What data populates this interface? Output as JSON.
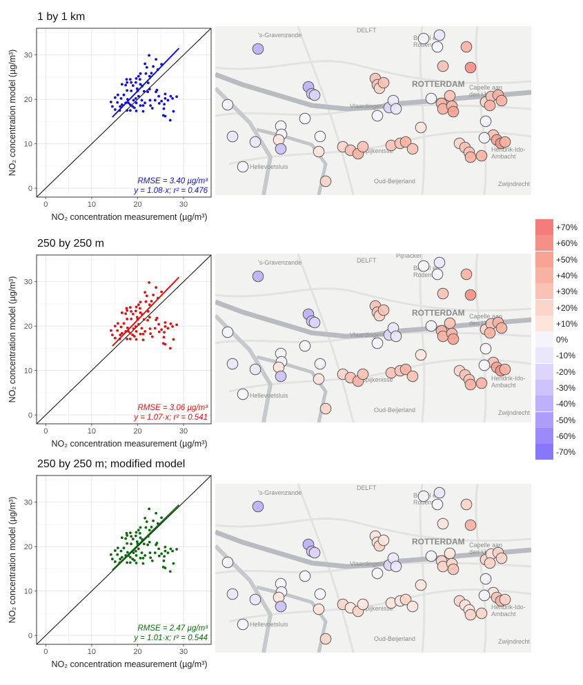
{
  "chart_data": [
    {
      "type": "scatter",
      "title": "1 by 1 km",
      "xlabel": "NO₂ concentration measurement (µg/m³)",
      "ylabel": "NO₂ concentration model (µg/m³)",
      "xlim": [
        -2,
        36
      ],
      "ylim": [
        -2,
        36
      ],
      "xticks": [
        0,
        10,
        20,
        30
      ],
      "yticks": [
        0,
        10,
        20,
        30
      ],
      "grid": true,
      "color": "#1010d8",
      "fit": {
        "x": [
          14.5,
          29
        ],
        "y": [
          16.0,
          31.5
        ]
      },
      "annotation_rmse": "RMSE = 3.40 µg/m³",
      "annotation_fit": "y = 1.08·x; r² = 0.476",
      "points": {
        "x": [
          22.5,
          24.0,
          21.6,
          25.2,
          23.4,
          22.0,
          24.4,
          23.0,
          20.6,
          21.8,
          20.2,
          22.6,
          19.7,
          20.5,
          17.6,
          18.4,
          17.7,
          19.6,
          18.6,
          22.3,
          20.6,
          16.6,
          17.4,
          19.0,
          21.0,
          19.9,
          22.6,
          24.2,
          17.7,
          18.6,
          20.0,
          21.4,
          22.2,
          24.0,
          26.0,
          15.7,
          17.0,
          20.2,
          24.6,
          27.2,
          28.5,
          15.1,
          16.4,
          19.6,
          26.0,
          27.6,
          17.8,
          19.1,
          20.9,
          22.7,
          23.8,
          26.6,
          25.2,
          14.2,
          15.6,
          17.4,
          18.0,
          19.7,
          21.6,
          24.7,
          25.8,
          16.6,
          18.4,
          20.6,
          21.2,
          22.8,
          14.5,
          16.2,
          18.9,
          19.3,
          23.2,
          25.7,
          15.1,
          16.1,
          17.7,
          18.4,
          19.7,
          21.2,
          27.8,
          25.6,
          26.0,
          27.1
        ],
        "y": [
          29.9,
          29.0,
          28.0,
          27.9,
          27.4,
          27.2,
          26.7,
          25.9,
          25.8,
          25.8,
          25.2,
          25.2,
          24.7,
          24.5,
          24.5,
          24.5,
          23.8,
          23.8,
          23.8,
          23.7,
          23.4,
          23.4,
          23.2,
          23.1,
          23.0,
          22.4,
          22.3,
          22.1,
          22.0,
          21.9,
          21.9,
          21.8,
          21.7,
          21.7,
          21.2,
          21.0,
          21.0,
          20.7,
          20.7,
          20.7,
          20.6,
          20.4,
          20.2,
          20.2,
          20.2,
          20.2,
          20.0,
          19.8,
          19.8,
          19.8,
          19.8,
          19.8,
          19.6,
          19.4,
          19.3,
          19.2,
          19.2,
          19.2,
          19.2,
          19.1,
          18.9,
          18.8,
          18.8,
          18.6,
          18.6,
          18.6,
          18.4,
          18.4,
          18.4,
          18.1,
          18.0,
          17.9,
          17.7,
          17.5,
          17.5,
          17.5,
          17.4,
          17.3,
          17.3,
          16.4,
          16.2,
          15.3
        ]
      }
    },
    {
      "type": "scatter",
      "title": "250 by 250 m",
      "xlabel": "NO₂ concentration measurement (µg/m³)",
      "ylabel": "NO₂ concentration model (µg/m³)",
      "xlim": [
        -2,
        36
      ],
      "ylim": [
        -2,
        36
      ],
      "xticks": [
        0,
        10,
        20,
        30
      ],
      "yticks": [
        0,
        10,
        20,
        30
      ],
      "grid": true,
      "color": "#e01010",
      "fit": {
        "x": [
          14.5,
          29
        ],
        "y": [
          15.5,
          31.0
        ]
      },
      "annotation_rmse": "RMSE = 3.06 µg/m³",
      "annotation_fit": "y = 1.07·x; r² = 0.541",
      "points": {
        "x": [
          22.5,
          24.0,
          21.6,
          25.2,
          23.4,
          22.0,
          24.4,
          23.0,
          20.6,
          21.8,
          20.2,
          22.6,
          19.7,
          20.5,
          17.6,
          18.4,
          17.7,
          19.6,
          18.6,
          22.3,
          20.6,
          16.6,
          17.4,
          19.0,
          21.0,
          19.9,
          22.6,
          24.2,
          17.7,
          18.6,
          20.0,
          21.4,
          22.2,
          24.0,
          26.0,
          15.7,
          17.0,
          20.2,
          24.6,
          27.2,
          28.5,
          15.1,
          16.4,
          19.6,
          26.0,
          27.6,
          17.8,
          19.1,
          20.9,
          22.7,
          23.8,
          26.6,
          25.2,
          14.2,
          15.6,
          17.4,
          18.0,
          19.7,
          21.6,
          24.7,
          25.8,
          16.6,
          18.4,
          20.6,
          21.2,
          22.8,
          14.5,
          16.2,
          18.9,
          19.3,
          23.2,
          25.7,
          15.1,
          16.1,
          17.7,
          18.4,
          19.7,
          21.2,
          27.8,
          25.6,
          26.0,
          27.1
        ],
        "y": [
          29.8,
          28.7,
          27.6,
          27.7,
          27.0,
          26.8,
          26.3,
          25.6,
          25.4,
          25.5,
          24.8,
          24.8,
          24.3,
          24.0,
          24.0,
          24.2,
          23.5,
          23.4,
          23.3,
          23.3,
          23.0,
          23.0,
          22.8,
          22.7,
          22.6,
          22.0,
          22.0,
          21.8,
          21.6,
          21.6,
          21.5,
          21.5,
          21.3,
          21.4,
          20.8,
          20.6,
          20.6,
          20.4,
          20.4,
          20.5,
          20.3,
          20.0,
          19.8,
          19.9,
          19.9,
          19.9,
          19.6,
          19.4,
          19.5,
          19.4,
          19.5,
          19.5,
          19.2,
          19.0,
          19.0,
          18.8,
          18.8,
          18.8,
          18.8,
          18.7,
          18.6,
          18.4,
          18.4,
          18.2,
          18.2,
          18.3,
          18.0,
          18.0,
          18.0,
          17.7,
          17.6,
          17.5,
          17.3,
          17.1,
          17.1,
          17.1,
          17.0,
          16.9,
          17.0,
          16.1,
          15.9,
          15.0
        ]
      }
    },
    {
      "type": "scatter",
      "title": "250 by 250 m; modified model",
      "xlabel": "NO₂ concentration measurement (µg/m³)",
      "ylabel": "NO₂ concentration model (µg/m³)",
      "xlim": [
        -2,
        36
      ],
      "ylim": [
        -2,
        36
      ],
      "xticks": [
        0,
        10,
        20,
        30
      ],
      "yticks": [
        0,
        10,
        20,
        30
      ],
      "grid": true,
      "color": "#0a6b0a",
      "fit": {
        "x": [
          14.5,
          29
        ],
        "y": [
          14.7,
          29.4
        ]
      },
      "annotation_rmse": "RMSE = 2.47 µg/m³",
      "annotation_fit": "y = 1.01·x; r² = 0.544",
      "points": {
        "x": [
          22.5,
          24.0,
          21.6,
          25.2,
          23.4,
          22.0,
          24.4,
          23.0,
          20.6,
          21.8,
          20.2,
          22.6,
          19.7,
          20.5,
          17.6,
          18.4,
          17.7,
          19.6,
          18.6,
          22.3,
          20.6,
          16.6,
          17.4,
          19.0,
          21.0,
          19.9,
          22.6,
          24.2,
          17.7,
          18.6,
          20.0,
          21.4,
          22.2,
          24.0,
          26.0,
          15.7,
          17.0,
          20.2,
          24.6,
          27.2,
          28.5,
          15.1,
          16.4,
          19.6,
          26.0,
          27.6,
          17.8,
          19.1,
          20.9,
          22.7,
          23.8,
          26.6,
          25.2,
          14.2,
          15.6,
          17.4,
          18.0,
          19.7,
          21.6,
          24.7,
          25.8,
          16.6,
          18.4,
          20.6,
          21.2,
          22.8,
          14.5,
          16.2,
          18.9,
          19.3,
          23.2,
          25.7,
          15.1,
          16.1,
          17.7,
          18.4,
          19.7,
          21.2,
          27.8,
          25.6,
          26.0,
          27.1
        ],
        "y": [
          28.5,
          27.5,
          26.4,
          26.5,
          25.8,
          25.6,
          25.2,
          24.4,
          24.3,
          24.3,
          23.7,
          23.7,
          23.2,
          23.0,
          23.0,
          23.1,
          22.5,
          22.4,
          22.3,
          22.3,
          22.0,
          22.0,
          21.8,
          21.7,
          21.6,
          21.1,
          21.0,
          20.8,
          20.7,
          20.6,
          20.6,
          20.6,
          20.4,
          20.4,
          19.9,
          19.7,
          19.7,
          19.5,
          19.5,
          19.5,
          19.4,
          19.1,
          19.0,
          19.0,
          19.0,
          19.0,
          18.7,
          18.6,
          18.6,
          18.6,
          18.6,
          18.6,
          18.4,
          18.2,
          18.2,
          18.0,
          18.0,
          18.0,
          18.0,
          17.9,
          17.8,
          17.6,
          17.6,
          17.4,
          17.4,
          17.5,
          17.2,
          17.2,
          17.2,
          16.9,
          16.8,
          16.8,
          16.6,
          16.4,
          16.4,
          16.4,
          16.3,
          16.2,
          16.2,
          15.4,
          15.2,
          14.4
        ]
      }
    }
  ],
  "maps": [
    {
      "place_labels": [
        "'s-Gravenzande",
        "DELFT",
        "Berkel en\nRodenrijs",
        "ROTTERDAM",
        "Capelle aan\nden IJssel",
        "Vlaardingen",
        "Spijkenisse",
        "Hellevoetsluis",
        "Oud-Beijerland",
        "Hendrik-Ido-\nAmbacht",
        "Zwijndrecht"
      ]
    },
    {
      "place_labels": [
        "'s-Gravenzande",
        "DELFT",
        "Pijnacker",
        "Berkel en\nRodenrijs",
        "ROTTERDAM",
        "Capelle aan\nden IJssel",
        "Vlaardingen",
        "Spijkenisse",
        "Hellevoetsluis",
        "Oud-Beijerland",
        "Hendrik-Ido-\nAmbacht",
        "Zwijndrecht"
      ]
    },
    {
      "place_labels": [
        "'s-Gravenzande",
        "DELFT",
        "Berkel en\nRodenrijs",
        "ROTTERDAM",
        "Capelle aan\nden IJssel",
        "Vlaardingen",
        "Spijkenisse",
        "Hellevoetsluis",
        "Oud-Beijerland",
        "Hendrik-Ido-\nAmbacht",
        "Zwijndrecht"
      ]
    }
  ],
  "legend": {
    "items": [
      {
        "label": "+70%",
        "color": "#f47c7c"
      },
      {
        "label": "+60%",
        "color": "#f59088"
      },
      {
        "label": "+50%",
        "color": "#f7a293"
      },
      {
        "label": "+40%",
        "color": "#f8b2a3"
      },
      {
        "label": "+30%",
        "color": "#fac2b4"
      },
      {
        "label": "+20%",
        "color": "#fbd4c8"
      },
      {
        "label": "+10%",
        "color": "#fde5dc"
      },
      {
        "label": "0%",
        "color": "#f5f4fb"
      },
      {
        "label": "-10%",
        "color": "#ebe7fb"
      },
      {
        "label": "-20%",
        "color": "#ddd5fb"
      },
      {
        "label": "-30%",
        "color": "#cec2fb"
      },
      {
        "label": "-40%",
        "color": "#bfb0fb"
      },
      {
        "label": "-50%",
        "color": "#ae9dfb"
      },
      {
        "label": "-60%",
        "color": "#9c8afb"
      },
      {
        "label": "-70%",
        "color": "#8677fb"
      }
    ]
  }
}
